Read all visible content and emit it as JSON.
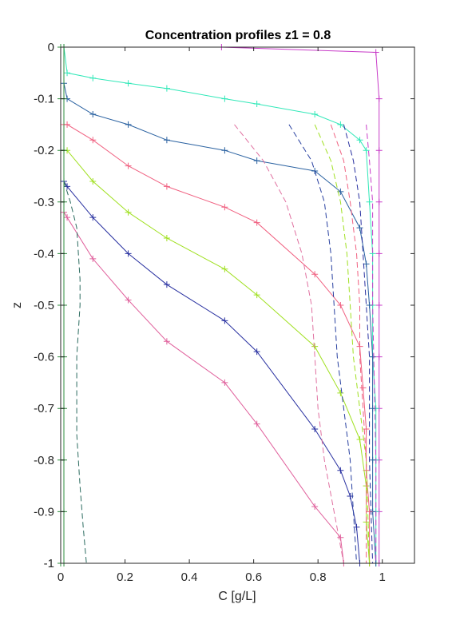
{
  "chart_data": {
    "type": "line",
    "title": "Concentration profiles z1 = 0.8",
    "xlabel": "C [g/L]",
    "ylabel": "z",
    "xlim": [
      0,
      1.1
    ],
    "ylim": [
      -1,
      0
    ],
    "xticks": [
      0,
      0.2,
      0.4,
      0.6,
      0.8,
      1
    ],
    "xtick_labels": [
      "0",
      "0.2",
      "0.4",
      "0.6",
      "0.8",
      "1"
    ],
    "yticks": [
      0,
      -0.1,
      -0.2,
      -0.3,
      -0.4,
      -0.5,
      -0.6,
      -0.7,
      -0.8,
      -0.9,
      -1
    ],
    "ytick_labels": [
      "0",
      "-0.1",
      "-0.2",
      "-0.3",
      "-0.4",
      "-0.5",
      "-0.6",
      "-0.7",
      "-0.8",
      "-0.9",
      "-1"
    ],
    "grid": false,
    "legend": "none",
    "series": [
      {
        "style": "solid",
        "color": "#c83cc8",
        "marker": "+",
        "x": [
          0.5,
          0.98,
          0.99,
          0.99,
          0.99,
          0.99,
          0.99,
          0.99,
          0.99,
          0.99,
          0.99,
          0.99
        ],
        "y": [
          0,
          -0.01,
          -0.1,
          -0.2,
          -0.3,
          -0.4,
          -0.5,
          -0.6,
          -0.7,
          -0.8,
          -0.9,
          -1
        ]
      },
      {
        "style": "solid",
        "color": "#30e8b8",
        "marker": "+",
        "x": [
          0.01,
          0.02,
          0.1,
          0.21,
          0.33,
          0.51,
          0.61,
          0.79,
          0.87,
          0.93,
          0.95,
          0.96,
          0.97,
          0.97,
          0.97,
          0.98,
          0.98,
          0.98,
          0.98
        ],
        "y": [
          0,
          -0.05,
          -0.06,
          -0.07,
          -0.08,
          -0.1,
          -0.11,
          -0.13,
          -0.15,
          -0.18,
          -0.2,
          -0.3,
          -0.4,
          -0.5,
          -0.6,
          -0.7,
          -0.8,
          -0.9,
          -1
        ]
      },
      {
        "style": "solid",
        "color": "#2860a0",
        "marker": "+",
        "x": [
          0.01,
          0.02,
          0.1,
          0.21,
          0.33,
          0.51,
          0.61,
          0.79,
          0.87,
          0.93,
          0.95,
          0.96,
          0.97,
          0.97,
          0.97,
          0.97,
          0.98
        ],
        "y": [
          -0.07,
          -0.1,
          -0.13,
          -0.15,
          -0.18,
          -0.2,
          -0.22,
          -0.24,
          -0.28,
          -0.35,
          -0.42,
          -0.5,
          -0.6,
          -0.7,
          -0.8,
          -0.9,
          -1
        ]
      },
      {
        "style": "solid",
        "color": "#f06080",
        "marker": "+",
        "x": [
          0.01,
          0.02,
          0.1,
          0.21,
          0.33,
          0.51,
          0.61,
          0.79,
          0.87,
          0.93,
          0.94,
          0.95,
          0.95,
          0.96,
          0.96
        ],
        "y": [
          -0.15,
          -0.15,
          -0.18,
          -0.23,
          -0.27,
          -0.31,
          -0.34,
          -0.44,
          -0.5,
          -0.58,
          -0.66,
          -0.74,
          -0.82,
          -0.9,
          -1
        ]
      },
      {
        "style": "solid",
        "color": "#a0e020",
        "marker": "+",
        "x": [
          0.01,
          0.02,
          0.1,
          0.21,
          0.33,
          0.51,
          0.61,
          0.79,
          0.87,
          0.93,
          0.95,
          0.95,
          0.96
        ],
        "y": [
          -0.2,
          -0.2,
          -0.26,
          -0.32,
          -0.37,
          -0.43,
          -0.48,
          -0.58,
          -0.67,
          -0.76,
          -0.85,
          -0.92,
          -1
        ]
      },
      {
        "style": "solid",
        "color": "#2830a0",
        "marker": "+",
        "x": [
          0.01,
          0.02,
          0.1,
          0.21,
          0.33,
          0.51,
          0.61,
          0.79,
          0.87,
          0.9,
          0.92,
          0.93
        ],
        "y": [
          -0.26,
          -0.27,
          -0.33,
          -0.4,
          -0.46,
          -0.53,
          -0.59,
          -0.74,
          -0.82,
          -0.87,
          -0.93,
          -1
        ]
      },
      {
        "style": "solid",
        "color": "#e0609c",
        "marker": "+",
        "x": [
          0.01,
          0.02,
          0.1,
          0.21,
          0.33,
          0.51,
          0.61,
          0.79,
          0.87,
          0.88
        ],
        "y": [
          -0.32,
          -0.33,
          -0.41,
          -0.49,
          -0.57,
          -0.65,
          -0.73,
          -0.89,
          -0.95,
          -1
        ]
      },
      {
        "style": "solid",
        "color": "#2c8c3c",
        "marker": "+",
        "x": [
          0.0,
          0.0,
          0.0,
          0.0,
          0.0,
          0.0,
          0.0,
          0.0,
          0.0,
          0.0,
          0.0
        ],
        "y": [
          0,
          -0.1,
          -0.2,
          -0.3,
          -0.4,
          -0.5,
          -0.6,
          -0.7,
          -0.8,
          -0.9,
          -1
        ]
      },
      {
        "style": "solid",
        "color": "#2c8c3c",
        "marker": "+",
        "x": [
          0.01,
          0.01,
          0.01,
          0.01,
          0.01,
          0.01,
          0.01,
          0.01,
          0.01,
          0.01,
          0.01
        ],
        "y": [
          0,
          -0.1,
          -0.2,
          -0.3,
          -0.4,
          -0.5,
          -0.6,
          -0.7,
          -0.8,
          -0.9,
          -1
        ]
      },
      {
        "style": "dashed",
        "color": "#2c6c60",
        "marker": "none",
        "x": [
          0.01,
          0.03,
          0.05,
          0.06,
          0.06,
          0.05,
          0.05,
          0.06,
          0.07,
          0.08
        ],
        "y": [
          -0.26,
          -0.3,
          -0.35,
          -0.45,
          -0.5,
          -0.6,
          -0.75,
          -0.85,
          -0.93,
          -1
        ]
      },
      {
        "style": "dashed",
        "color": "#e070a0",
        "marker": "none",
        "x": [
          0.54,
          0.63,
          0.7,
          0.75,
          0.78,
          0.79,
          0.8,
          0.82,
          0.85,
          0.88
        ],
        "y": [
          -0.15,
          -0.22,
          -0.3,
          -0.4,
          -0.5,
          -0.6,
          -0.7,
          -0.8,
          -0.9,
          -1
        ]
      },
      {
        "style": "dashed",
        "color": "#2840a0",
        "marker": "none",
        "x": [
          0.71,
          0.78,
          0.82,
          0.84,
          0.85,
          0.86,
          0.88,
          0.9,
          0.92
        ],
        "y": [
          -0.15,
          -0.22,
          -0.3,
          -0.4,
          -0.5,
          -0.6,
          -0.7,
          -0.8,
          -1
        ]
      },
      {
        "style": "dashed",
        "color": "#a0e020",
        "marker": "none",
        "x": [
          0.79,
          0.84,
          0.87,
          0.89,
          0.9,
          0.91,
          0.93,
          0.95,
          0.96
        ],
        "y": [
          -0.15,
          -0.22,
          -0.3,
          -0.4,
          -0.5,
          -0.6,
          -0.7,
          -0.8,
          -1
        ]
      },
      {
        "style": "dashed",
        "color": "#f06080",
        "marker": "none",
        "x": [
          0.84,
          0.88,
          0.9,
          0.92,
          0.93,
          0.93,
          0.94,
          0.95,
          0.95
        ],
        "y": [
          -0.15,
          -0.22,
          -0.3,
          -0.4,
          -0.5,
          -0.6,
          -0.7,
          -0.8,
          -1
        ]
      },
      {
        "style": "dashed",
        "color": "#2830a0",
        "marker": "none",
        "x": [
          0.88,
          0.91,
          0.93,
          0.94,
          0.95,
          0.96,
          0.96,
          0.97
        ],
        "y": [
          -0.15,
          -0.22,
          -0.3,
          -0.4,
          -0.5,
          -0.6,
          -0.8,
          -1
        ]
      },
      {
        "style": "dashed",
        "color": "#c83cc8",
        "marker": "none",
        "x": [
          0.95,
          0.96,
          0.97,
          0.97,
          0.98,
          0.98
        ],
        "y": [
          -0.15,
          -0.22,
          -0.3,
          -0.5,
          -0.8,
          -1
        ]
      }
    ]
  }
}
